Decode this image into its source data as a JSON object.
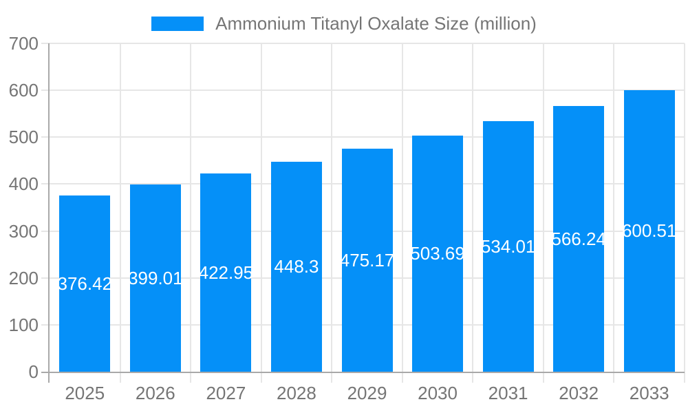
{
  "chart_data": {
    "type": "bar",
    "title": "Ammonium Titanyl Oxalate Size (million)",
    "categories": [
      "2025",
      "2026",
      "2027",
      "2028",
      "2029",
      "2030",
      "2031",
      "2032",
      "2033"
    ],
    "values": [
      376.42,
      399.01,
      422.95,
      448.3,
      475.17,
      503.69,
      534.01,
      566.24,
      600.51
    ],
    "value_labels": [
      "376.42",
      "399.01",
      "422.95",
      "448.3",
      "475.17",
      "503.69",
      "534.01",
      "566.24",
      "600.51"
    ],
    "xlabel": "",
    "ylabel": "",
    "ylim": [
      0,
      700
    ],
    "yticks": [
      0,
      100,
      200,
      300,
      400,
      500,
      600,
      700
    ],
    "grid": true,
    "legend_position": "top",
    "colors": {
      "bar": "#0590f8",
      "value_label": "#ffffff",
      "axis_text": "#757575",
      "grid_line": "#e6e6e6",
      "axis_line": "#a9a9a9",
      "background": "#ffffff"
    }
  }
}
